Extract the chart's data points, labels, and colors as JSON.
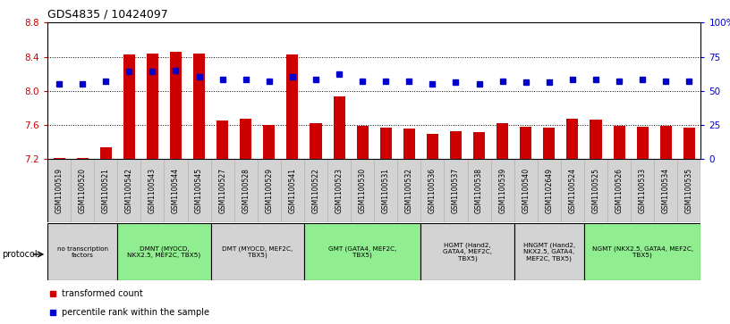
{
  "title": "GDS4835 / 10424097",
  "samples": [
    "GSM1100519",
    "GSM1100520",
    "GSM1100521",
    "GSM1100542",
    "GSM1100543",
    "GSM1100544",
    "GSM1100545",
    "GSM1100527",
    "GSM1100528",
    "GSM1100529",
    "GSM1100541",
    "GSM1100522",
    "GSM1100523",
    "GSM1100530",
    "GSM1100531",
    "GSM1100532",
    "GSM1100536",
    "GSM1100537",
    "GSM1100538",
    "GSM1100539",
    "GSM1100540",
    "GSM1102649",
    "GSM1100524",
    "GSM1100525",
    "GSM1100526",
    "GSM1100533",
    "GSM1100534",
    "GSM1100535"
  ],
  "bar_values": [
    7.21,
    7.21,
    7.33,
    8.43,
    8.44,
    8.46,
    8.44,
    7.65,
    7.67,
    7.6,
    8.43,
    7.62,
    7.93,
    7.59,
    7.57,
    7.56,
    7.49,
    7.52,
    7.51,
    7.62,
    7.58,
    7.57,
    7.67,
    7.66,
    7.59,
    7.58,
    7.59,
    7.57
  ],
  "percentile_values": [
    55,
    55,
    57,
    64,
    64,
    65,
    60,
    58,
    58,
    57,
    60,
    58,
    62,
    57,
    57,
    57,
    55,
    56,
    55,
    57,
    56,
    56,
    58,
    58,
    57,
    58,
    57,
    57
  ],
  "ymin": 7.2,
  "ymax": 8.8,
  "y_ticks_left": [
    7.2,
    7.6,
    8.0,
    8.4,
    8.8
  ],
  "y_ticks_right_vals": [
    0,
    25,
    50,
    75,
    100
  ],
  "y_ticks_right_labels": [
    "0",
    "25",
    "50",
    "75",
    "100%"
  ],
  "bar_color": "#cc0000",
  "dot_color": "#0000cc",
  "protocol_groups": [
    {
      "label": "no transcription\nfactors",
      "start": 0,
      "end": 3,
      "color": "#d3d3d3"
    },
    {
      "label": "DMNT (MYOCD,\nNKX2.5, MEF2C, TBX5)",
      "start": 3,
      "end": 7,
      "color": "#90ee90"
    },
    {
      "label": "DMT (MYOCD, MEF2C,\nTBX5)",
      "start": 7,
      "end": 11,
      "color": "#d3d3d3"
    },
    {
      "label": "GMT (GATA4, MEF2C,\nTBX5)",
      "start": 11,
      "end": 16,
      "color": "#90ee90"
    },
    {
      "label": "HGMT (Hand2,\nGATA4, MEF2C,\nTBX5)",
      "start": 16,
      "end": 20,
      "color": "#d3d3d3"
    },
    {
      "label": "HNGMT (Hand2,\nNKX2.5, GATA4,\nMEF2C, TBX5)",
      "start": 20,
      "end": 23,
      "color": "#d3d3d3"
    },
    {
      "label": "NGMT (NKX2.5, GATA4, MEF2C,\nTBX5)",
      "start": 23,
      "end": 28,
      "color": "#90ee90"
    }
  ]
}
